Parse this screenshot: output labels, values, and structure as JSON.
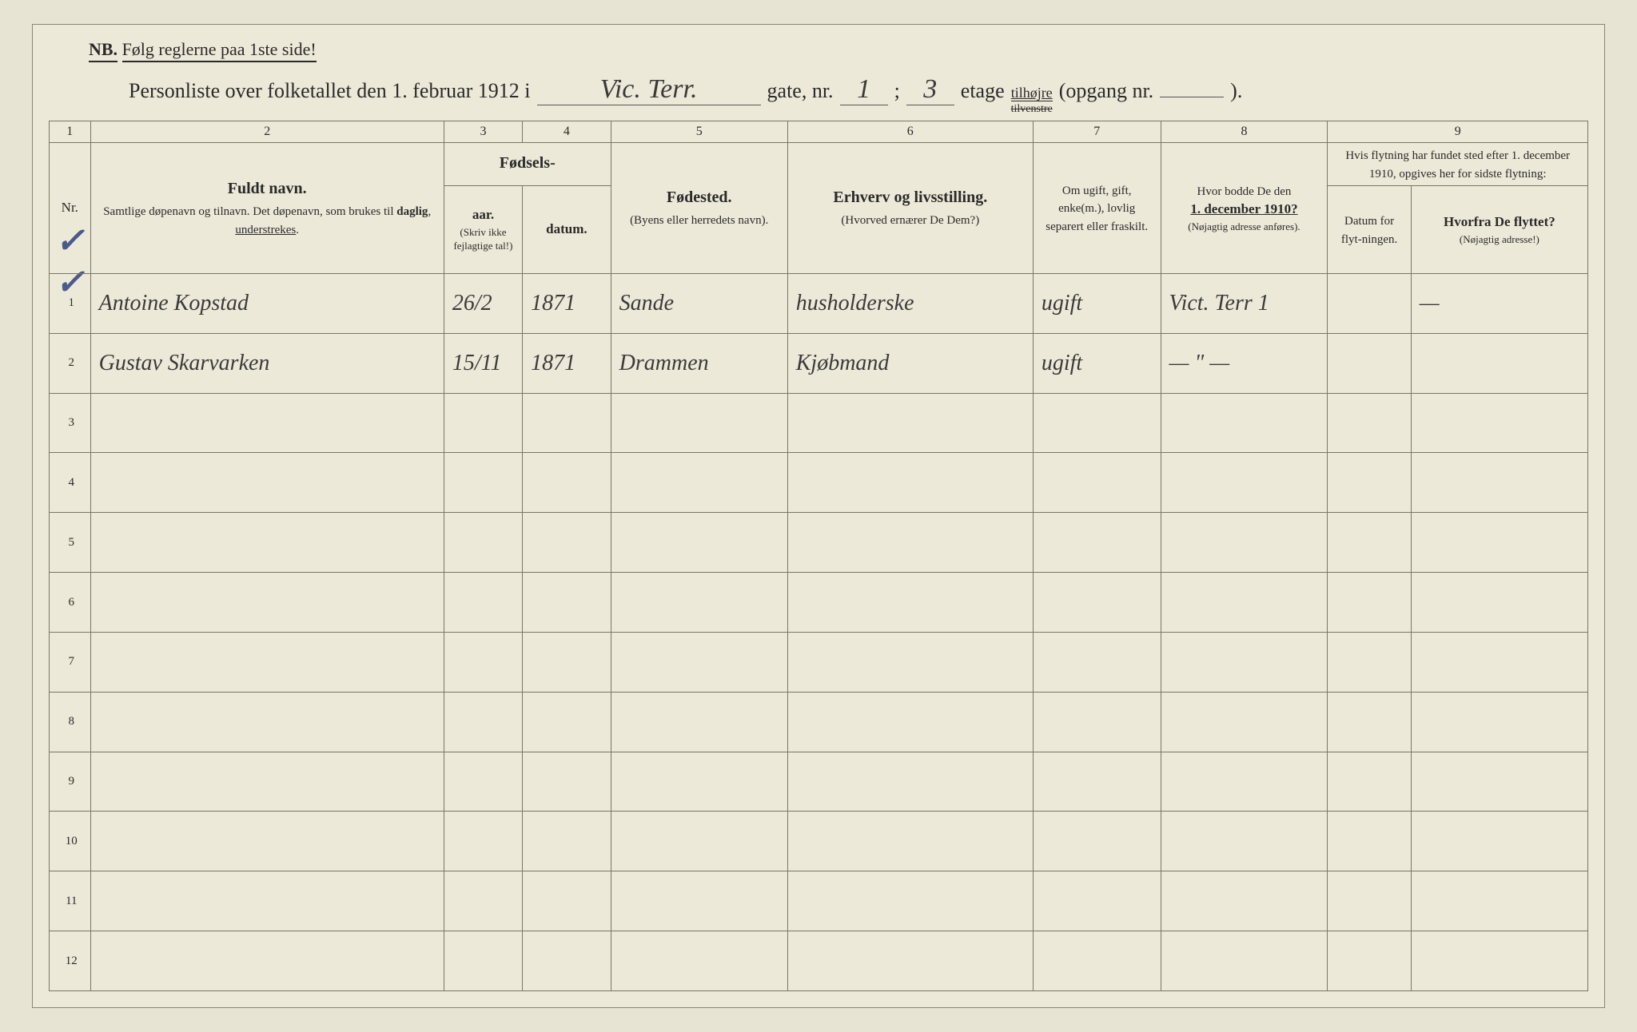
{
  "top_note": {
    "nb": "NB.",
    "text": "Følg reglerne paa 1ste side!"
  },
  "header": {
    "prefix": "Personliste over folketallet den 1. februar 1912 i",
    "street": "Vic. Terr.",
    "gate_label": "gate, nr.",
    "gate_nr": "1",
    "semicolon": ";",
    "etage_nr": "3",
    "etage_label": "etage",
    "tilhojre_top": "tilhøjre",
    "tilhojre_bottom": "tilvenstre",
    "opgang": "(opgang nr.",
    "opgang_close": ")."
  },
  "colnums": [
    "1",
    "2",
    "3",
    "4",
    "5",
    "6",
    "7",
    "8",
    "9"
  ],
  "headers": {
    "nr": "Nr.",
    "name_title": "Fuldt navn.",
    "name_sub": "Samtlige døpenavn og tilnavn. Det døpenavn, som brukes til daglig, understrekes.",
    "birth_title": "Fødsels-",
    "birth_year": "aar.",
    "birth_date": "datum.",
    "birth_note": "(Skriv ikke fejlagtige tal!)",
    "birthplace_title": "Fødested.",
    "birthplace_sub": "(Byens eller herredets navn).",
    "occupation_title": "Erhverv og livsstilling.",
    "occupation_sub": "(Hvorved ernærer De Dem?)",
    "marital": "Om ugift, gift, enke(m.), lovlig separert eller fraskilt.",
    "addr1910_title": "Hvor bodde De den",
    "addr1910_date": "1. december 1910?",
    "addr1910_sub": "(Nøjagtig adresse anføres).",
    "move_title": "Hvis flytning har fundet sted efter 1. december 1910, opgives her for sidste flytning:",
    "move_date": "Datum for flyt-ningen.",
    "move_from_title": "Hvorfra De flyttet?",
    "move_from_sub": "(Nøjagtig adresse!)"
  },
  "rows": [
    {
      "n": "1",
      "name": "Antoine Kopstad",
      "day": "26/2",
      "year": "1871",
      "place": "Sande",
      "occ": "husholderske",
      "mar": "ugift",
      "addr": "Vict. Terr 1",
      "mdate": "",
      "mfrom": "—"
    },
    {
      "n": "2",
      "name": "Gustav Skarvarken",
      "day": "15/11",
      "year": "1871",
      "place": "Drammen",
      "occ": "Kjøbmand",
      "mar": "ugift",
      "addr": "— \" —",
      "mdate": "",
      "mfrom": ""
    },
    {
      "n": "3"
    },
    {
      "n": "4"
    },
    {
      "n": "5"
    },
    {
      "n": "6"
    },
    {
      "n": "7"
    },
    {
      "n": "8"
    },
    {
      "n": "9"
    },
    {
      "n": "10"
    },
    {
      "n": "11"
    },
    {
      "n": "12"
    }
  ],
  "colors": {
    "paper": "#ede9d9",
    "border": "#7a7665",
    "ink_print": "#2a2a2a",
    "ink_hand": "#3a3a3a",
    "checkmark": "#4a5a8a"
  }
}
